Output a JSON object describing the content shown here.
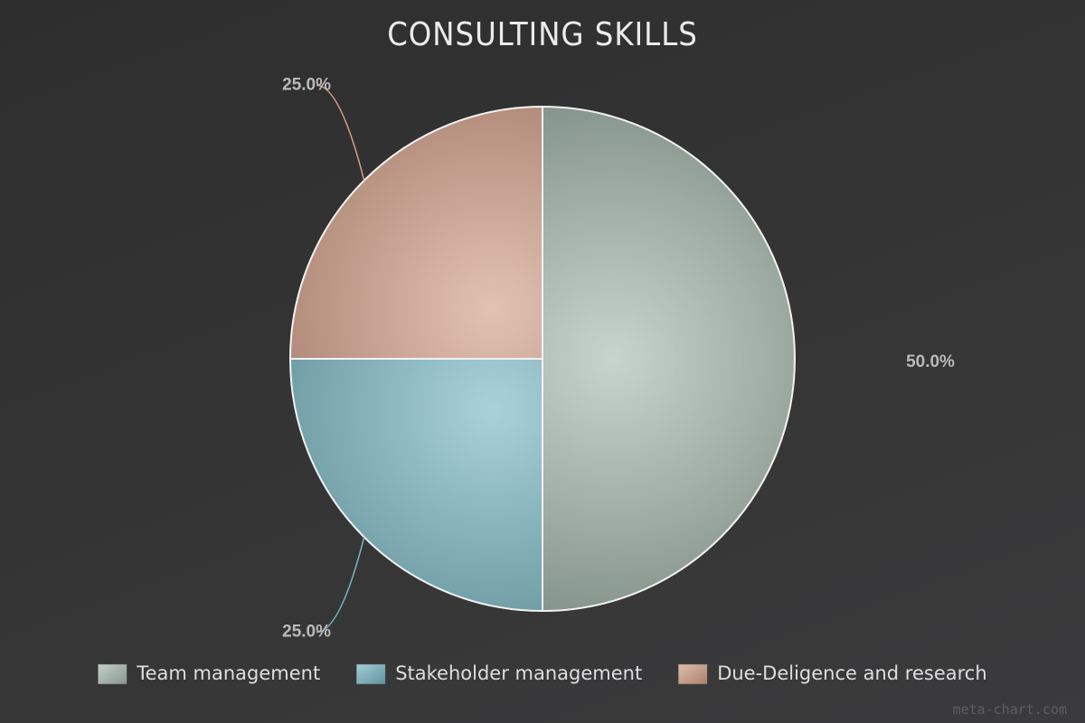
{
  "chart_data": {
    "type": "pie",
    "title": "CONSULTING SKILLS",
    "categories": [
      "Team management",
      "Stakeholder management",
      "Due-Deligence and research"
    ],
    "values": [
      50.0,
      25.0,
      25.0
    ],
    "value_labels": [
      "50.0%",
      "25.0%",
      "25.0%"
    ],
    "colors": [
      "#a9bdb1",
      "#7ab8c4",
      "#d4a088"
    ],
    "legend_position": "bottom",
    "start_angle": "12 o'clock",
    "direction": "clockwise"
  },
  "watermark": "meta-chart.com"
}
